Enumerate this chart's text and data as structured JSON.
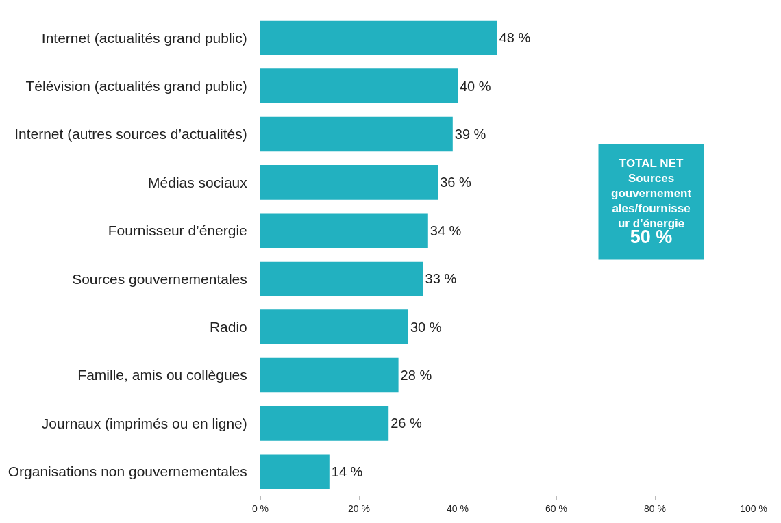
{
  "chart_data": {
    "type": "bar",
    "orientation": "horizontal",
    "categories": [
      "Internet (actualités grand public)",
      "Télévision (actualités grand public)",
      "Internet (autres sources d’actualités)",
      "Médias sociaux",
      "Fournisseur d’énergie",
      "Sources gouvernementales",
      "Radio",
      "Famille, amis ou collègues",
      "Journaux (imprimés ou en ligne)",
      "Organisations non gouvernementales"
    ],
    "values": [
      48,
      40,
      39,
      36,
      34,
      33,
      30,
      28,
      26,
      14
    ],
    "value_labels": [
      "48 %",
      "40 %",
      "39 %",
      "36 %",
      "34 %",
      "33 %",
      "30 %",
      "28 %",
      "26 %",
      "14 %"
    ],
    "color": "#22b1c0",
    "xlim": [
      0,
      100
    ],
    "xticks": [
      {
        "value": 0,
        "label": "0 %"
      },
      {
        "value": 20,
        "label": "20 %"
      },
      {
        "value": 40,
        "label": "40 %"
      },
      {
        "value": 60,
        "label": "60 %"
      },
      {
        "value": 80,
        "label": "80 %"
      },
      {
        "value": 100,
        "label": "100 %"
      }
    ],
    "legend": false,
    "annotations": [
      "TOTAL NET\nSources\ngouvernement\nales/fournisse\nur d’énergie",
      "50 %"
    ]
  }
}
